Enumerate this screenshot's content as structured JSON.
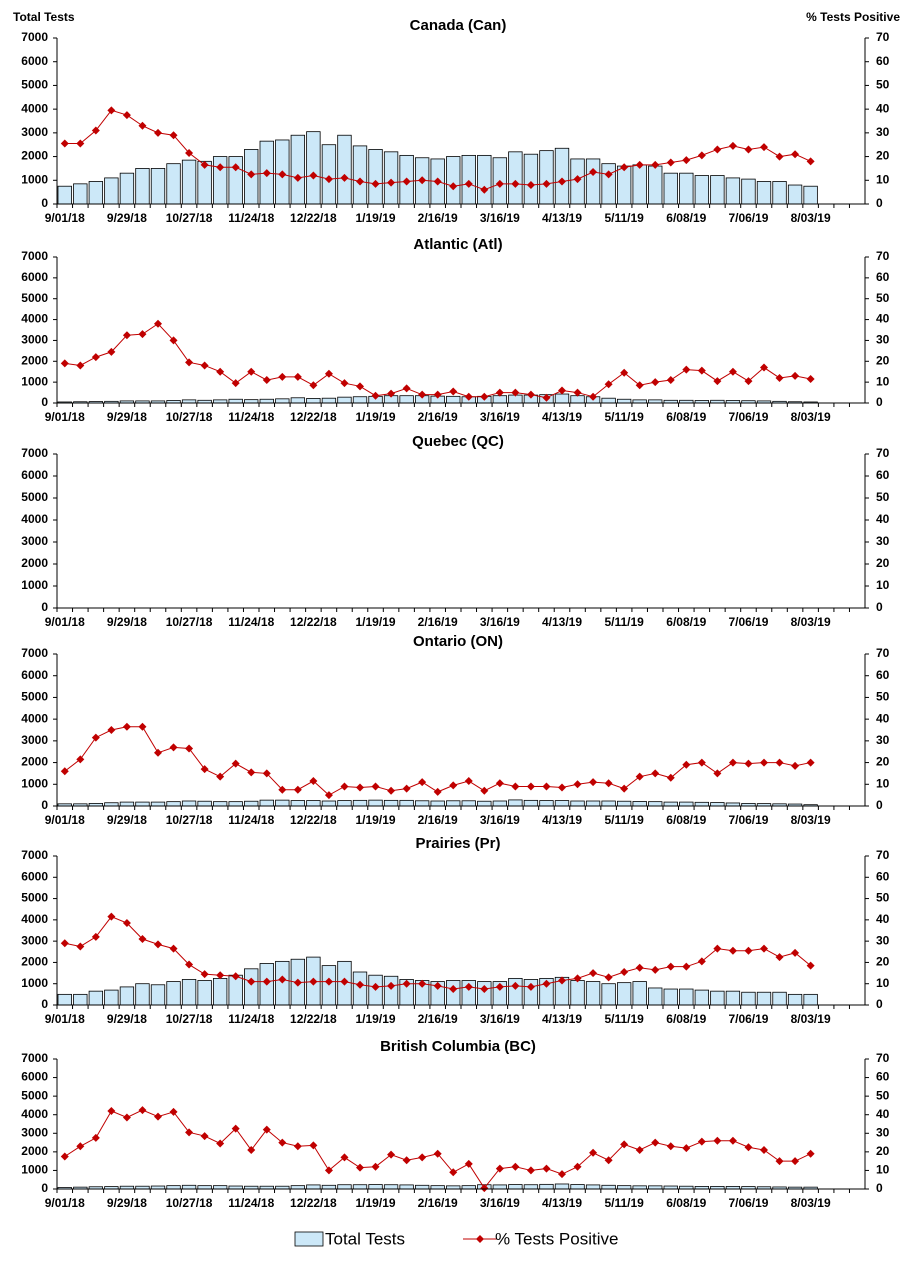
{
  "chart_data": [
    {
      "type": "combo",
      "title": "Canada (Can)",
      "y_label": "Total Tests",
      "y2_label": "% Tests Positive",
      "categories": [
        "9/01/18",
        null,
        null,
        null,
        "9/29/18",
        null,
        null,
        null,
        "10/27/18",
        null,
        null,
        null,
        "11/24/18",
        null,
        null,
        null,
        "12/22/18",
        null,
        null,
        null,
        "1/19/19",
        null,
        null,
        null,
        "2/16/19",
        null,
        null,
        null,
        "3/16/19",
        null,
        null,
        null,
        "4/13/19",
        null,
        null,
        null,
        "5/11/19",
        null,
        null,
        null,
        "6/08/19",
        null,
        null,
        null,
        "7/06/19",
        null,
        null,
        null,
        "8/03/19",
        null,
        null,
        null
      ],
      "ylim": [
        0,
        7000
      ],
      "yticks": [
        0,
        1000,
        2000,
        3000,
        4000,
        5000,
        6000,
        7000
      ],
      "y2lim": [
        0,
        70
      ],
      "y2ticks": [
        0,
        10,
        20,
        30,
        40,
        50,
        60,
        70
      ],
      "series": [
        {
          "name": "Total Tests",
          "type": "bar",
          "color": "#cce8f8",
          "values": [
            750,
            850,
            950,
            1100,
            1300,
            1500,
            1500,
            1700,
            1850,
            1800,
            2000,
            2000,
            2300,
            2650,
            2700,
            2900,
            3050,
            2500,
            2900,
            2450,
            2300,
            2200,
            2050,
            1950,
            1900,
            2000,
            2050,
            2050,
            1950,
            2200,
            2100,
            2250,
            2350,
            1900,
            1900,
            1700,
            1600,
            1650,
            1600,
            1300,
            1300,
            1200,
            1200,
            1100,
            1050,
            950,
            950,
            800,
            750,
            null,
            null,
            null
          ]
        },
        {
          "name": "% Tests Positive",
          "type": "line",
          "axis": "y2",
          "color": "#c00000",
          "values": [
            25.5,
            25.5,
            31,
            39.5,
            37.5,
            33,
            30,
            29,
            21.5,
            16.5,
            15.5,
            15.5,
            12.5,
            13,
            12.5,
            11,
            12,
            10.5,
            11,
            9.5,
            8.5,
            9,
            9.5,
            10,
            9.5,
            7.5,
            8.5,
            6,
            8.5,
            8.5,
            8,
            8.5,
            9.5,
            10.5,
            13.5,
            12.5,
            15.5,
            16.5,
            16.5,
            17.5,
            18.5,
            20.5,
            23,
            24.5,
            23,
            24,
            20,
            21,
            18,
            null,
            null,
            null
          ]
        }
      ]
    },
    {
      "type": "combo",
      "title": "Atlantic (Atl)",
      "categories": [
        "9/01/18",
        null,
        null,
        null,
        "9/29/18",
        null,
        null,
        null,
        "10/27/18",
        null,
        null,
        null,
        "11/24/18",
        null,
        null,
        null,
        "12/22/18",
        null,
        null,
        null,
        "1/19/19",
        null,
        null,
        null,
        "2/16/19",
        null,
        null,
        null,
        "3/16/19",
        null,
        null,
        null,
        "4/13/19",
        null,
        null,
        null,
        "5/11/19",
        null,
        null,
        null,
        "6/08/19",
        null,
        null,
        null,
        "7/06/19",
        null,
        null,
        null,
        "8/03/19",
        null,
        null,
        null
      ],
      "ylim": [
        0,
        7000
      ],
      "yticks": [
        0,
        1000,
        2000,
        3000,
        4000,
        5000,
        6000,
        7000
      ],
      "y2lim": [
        0,
        70
      ],
      "y2ticks": [
        0,
        10,
        20,
        30,
        40,
        50,
        60,
        70
      ],
      "series": [
        {
          "type": "bar",
          "color": "#cce8f8",
          "values": [
            50,
            60,
            70,
            80,
            100,
            100,
            100,
            120,
            150,
            130,
            150,
            180,
            160,
            180,
            200,
            250,
            220,
            230,
            280,
            300,
            320,
            350,
            350,
            350,
            330,
            320,
            300,
            320,
            350,
            380,
            380,
            400,
            430,
            350,
            300,
            230,
            180,
            150,
            150,
            130,
            130,
            120,
            130,
            120,
            110,
            100,
            80,
            60,
            50,
            null,
            null,
            null
          ]
        },
        {
          "type": "line",
          "axis": "y2",
          "color": "#c00000",
          "values": [
            19,
            18,
            22,
            24.5,
            32.5,
            33,
            38,
            30,
            19.5,
            18,
            15,
            9.5,
            15,
            11,
            12.5,
            12.5,
            8.5,
            14,
            9.5,
            8,
            3.5,
            4.5,
            7,
            4,
            4,
            5.5,
            3,
            3,
            5,
            5,
            4,
            2.5,
            6,
            5,
            3,
            9,
            14.5,
            8.5,
            10,
            11,
            16,
            15.5,
            10.5,
            15,
            10.5,
            17,
            12,
            13,
            11.5,
            null,
            null,
            null
          ]
        }
      ]
    },
    {
      "type": "combo",
      "title": "Quebec (QC)",
      "categories": [
        "9/01/18",
        null,
        null,
        null,
        "9/29/18",
        null,
        null,
        null,
        "10/27/18",
        null,
        null,
        null,
        "11/24/18",
        null,
        null,
        null,
        "12/22/18",
        null,
        null,
        null,
        "1/19/19",
        null,
        null,
        null,
        "2/16/19",
        null,
        null,
        null,
        "3/16/19",
        null,
        null,
        null,
        "4/13/19",
        null,
        null,
        null,
        "5/11/19",
        null,
        null,
        null,
        "6/08/19",
        null,
        null,
        null,
        "7/06/19",
        null,
        null,
        null,
        "8/03/19",
        null,
        null,
        null
      ],
      "ylim": [
        0,
        7000
      ],
      "yticks": [
        0,
        1000,
        2000,
        3000,
        4000,
        5000,
        6000,
        7000
      ],
      "y2lim": [
        0,
        70
      ],
      "y2ticks": [
        0,
        10,
        20,
        30,
        40,
        50,
        60,
        70
      ],
      "series": []
    },
    {
      "type": "combo",
      "title": "Ontario (ON)",
      "categories": [
        "9/01/18",
        null,
        null,
        null,
        "9/29/18",
        null,
        null,
        null,
        "10/27/18",
        null,
        null,
        null,
        "11/24/18",
        null,
        null,
        null,
        "12/22/18",
        null,
        null,
        null,
        "1/19/19",
        null,
        null,
        null,
        "2/16/19",
        null,
        null,
        null,
        "3/16/19",
        null,
        null,
        null,
        "4/13/19",
        null,
        null,
        null,
        "5/11/19",
        null,
        null,
        null,
        "6/08/19",
        null,
        null,
        null,
        "7/06/19",
        null,
        null,
        null,
        "8/03/19",
        null,
        null,
        null
      ],
      "ylim": [
        0,
        7000
      ],
      "yticks": [
        0,
        1000,
        2000,
        3000,
        4000,
        5000,
        6000,
        7000
      ],
      "y2lim": [
        0,
        70
      ],
      "y2ticks": [
        0,
        10,
        20,
        30,
        40,
        50,
        60,
        70
      ],
      "series": [
        {
          "type": "bar",
          "color": "#cce8f8",
          "values": [
            100,
            100,
            120,
            150,
            180,
            180,
            180,
            200,
            230,
            220,
            200,
            200,
            220,
            270,
            270,
            250,
            250,
            230,
            250,
            260,
            270,
            260,
            260,
            240,
            230,
            240,
            240,
            220,
            230,
            280,
            260,
            250,
            250,
            230,
            230,
            230,
            220,
            210,
            200,
            180,
            180,
            170,
            160,
            140,
            120,
            110,
            100,
            90,
            60,
            null,
            null,
            null
          ]
        },
        {
          "type": "line",
          "axis": "y2",
          "color": "#c00000",
          "values": [
            16,
            21.5,
            31.5,
            35,
            36.5,
            36.5,
            24.5,
            27,
            26.5,
            17,
            13.5,
            19.5,
            15.5,
            15,
            7.5,
            7.5,
            11.5,
            5,
            9,
            8.5,
            9,
            7,
            8,
            11,
            6.5,
            9.5,
            11.5,
            7,
            10.5,
            9,
            9,
            9,
            8.5,
            10,
            11,
            10.5,
            8,
            13.5,
            15,
            13,
            19,
            20,
            15,
            20,
            19.5,
            20,
            20,
            18.5,
            20,
            null,
            null,
            null
          ]
        }
      ]
    },
    {
      "type": "combo",
      "title": "Prairies (Pr)",
      "categories": [
        "9/01/18",
        null,
        null,
        null,
        "9/29/18",
        null,
        null,
        null,
        "10/27/18",
        null,
        null,
        null,
        "11/24/18",
        null,
        null,
        null,
        "12/22/18",
        null,
        null,
        null,
        "1/19/19",
        null,
        null,
        null,
        "2/16/19",
        null,
        null,
        null,
        "3/16/19",
        null,
        null,
        null,
        "4/13/19",
        null,
        null,
        null,
        "5/11/19",
        null,
        null,
        null,
        "6/08/19",
        null,
        null,
        null,
        "7/06/19",
        null,
        null,
        null,
        "8/03/19",
        null,
        null,
        null
      ],
      "ylim": [
        0,
        7000
      ],
      "yticks": [
        0,
        1000,
        2000,
        3000,
        4000,
        5000,
        6000,
        7000
      ],
      "y2lim": [
        0,
        70
      ],
      "y2ticks": [
        0,
        10,
        20,
        30,
        40,
        50,
        60,
        70
      ],
      "series": [
        {
          "type": "bar",
          "color": "#cce8f8",
          "values": [
            500,
            500,
            650,
            700,
            850,
            1000,
            950,
            1100,
            1200,
            1150,
            1250,
            1400,
            1700,
            1950,
            2050,
            2150,
            2250,
            1850,
            2050,
            1550,
            1400,
            1350,
            1200,
            1150,
            1100,
            1150,
            1150,
            1100,
            1100,
            1250,
            1200,
            1250,
            1300,
            1150,
            1100,
            1000,
            1050,
            1100,
            800,
            750,
            750,
            700,
            650,
            650,
            600,
            600,
            600,
            500,
            500,
            null,
            null,
            null
          ]
        },
        {
          "type": "line",
          "axis": "y2",
          "color": "#c00000",
          "values": [
            29,
            27.5,
            32,
            41.5,
            38.5,
            31,
            28.5,
            26.5,
            19,
            14.5,
            14,
            13.5,
            11,
            11,
            12,
            10.5,
            11,
            11,
            11,
            9.5,
            8.5,
            9,
            10,
            10,
            9,
            7.5,
            8.5,
            7.5,
            8.5,
            9,
            8.5,
            10,
            11.5,
            12.5,
            15,
            13,
            15.5,
            17.5,
            16.5,
            18,
            18,
            20.5,
            26.5,
            25.5,
            25.5,
            26.5,
            22.5,
            24.5,
            18.5,
            null,
            null,
            null
          ]
        }
      ]
    },
    {
      "type": "combo",
      "title": "British Columbia (BC)",
      "categories": [
        "9/01/18",
        null,
        null,
        null,
        "9/29/18",
        null,
        null,
        null,
        "10/27/18",
        null,
        null,
        null,
        "11/24/18",
        null,
        null,
        null,
        "12/22/18",
        null,
        null,
        null,
        "1/19/19",
        null,
        null,
        null,
        "2/16/19",
        null,
        null,
        null,
        "3/16/19",
        null,
        null,
        null,
        "4/13/19",
        null,
        null,
        null,
        "5/11/19",
        null,
        null,
        null,
        "6/08/19",
        null,
        null,
        null,
        "7/06/19",
        null,
        null,
        null,
        "8/03/19",
        null,
        null,
        null
      ],
      "ylim": [
        0,
        7000
      ],
      "yticks": [
        0,
        1000,
        2000,
        3000,
        4000,
        5000,
        6000,
        7000
      ],
      "y2lim": [
        0,
        70
      ],
      "y2ticks": [
        0,
        10,
        20,
        30,
        40,
        50,
        60,
        70
      ],
      "series": [
        {
          "type": "bar",
          "color": "#cce8f8",
          "values": [
            80,
            100,
            120,
            130,
            150,
            150,
            160,
            180,
            200,
            180,
            180,
            160,
            150,
            150,
            150,
            180,
            220,
            200,
            230,
            230,
            240,
            230,
            220,
            200,
            180,
            170,
            180,
            230,
            220,
            240,
            230,
            250,
            270,
            240,
            220,
            200,
            180,
            170,
            170,
            160,
            150,
            140,
            140,
            140,
            130,
            120,
            110,
            100,
            100,
            null,
            null,
            null
          ]
        },
        {
          "type": "line",
          "axis": "y2",
          "color": "#c00000",
          "values": [
            17.5,
            23,
            27.5,
            42,
            38.5,
            42.5,
            39,
            41.5,
            30.5,
            28.5,
            24.5,
            32.5,
            21,
            32,
            25,
            23,
            23.5,
            10,
            17,
            11.5,
            12,
            18.5,
            15.5,
            17,
            19,
            9,
            13.5,
            0.5,
            11,
            12,
            10,
            11,
            8,
            12,
            19.5,
            15.5,
            24,
            21,
            25,
            23,
            22,
            25.5,
            26,
            26,
            22.5,
            21,
            15,
            15,
            19,
            null,
            null,
            null
          ]
        }
      ]
    }
  ]
}
